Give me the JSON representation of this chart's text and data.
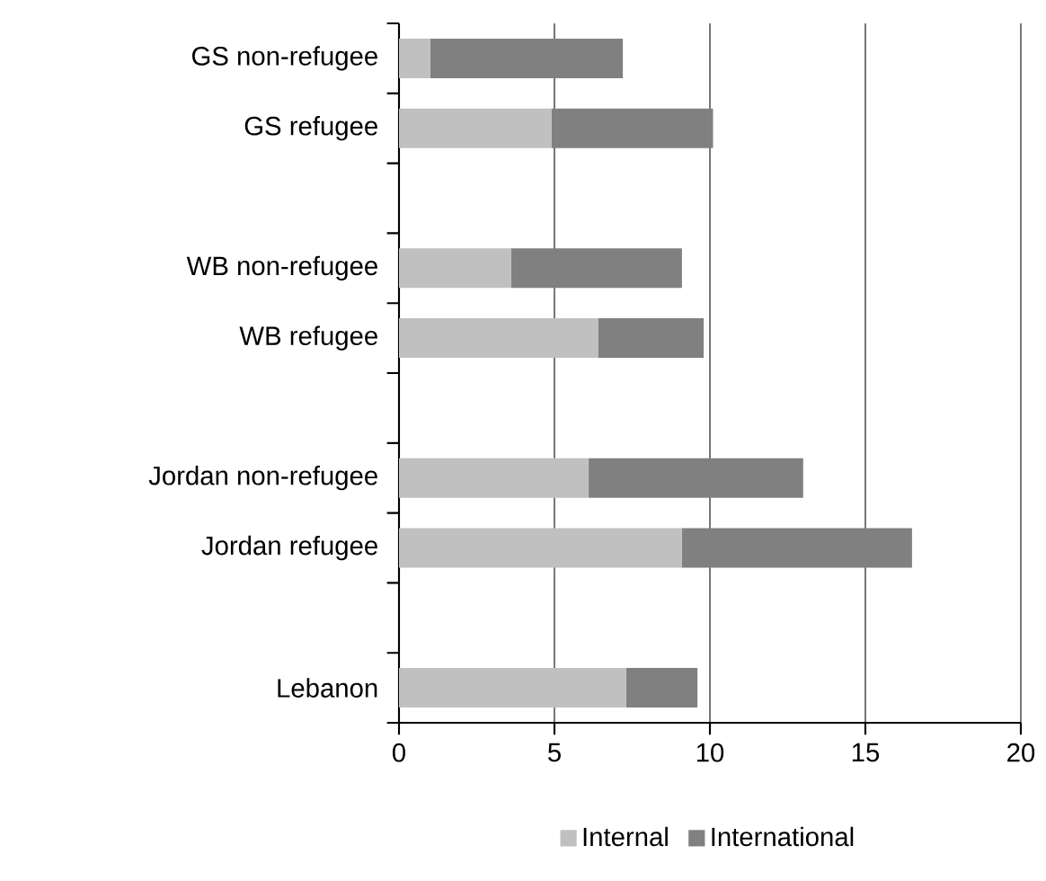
{
  "chart_data": {
    "type": "bar",
    "orientation": "horizontal",
    "stacked": true,
    "categories": [
      "GS non-refugee",
      "GS refugee",
      null,
      "WB non-refugee",
      "WB refugee",
      null,
      "Jordan non-refugee",
      "Jordan refugee",
      null,
      "Lebanon"
    ],
    "series": [
      {
        "name": "Internal",
        "color": "#c0c0c0",
        "values": [
          1.0,
          4.9,
          null,
          3.6,
          6.4,
          null,
          6.1,
          9.1,
          null,
          7.3
        ]
      },
      {
        "name": "International",
        "color": "#808080",
        "values": [
          6.2,
          5.2,
          null,
          5.5,
          3.4,
          null,
          6.9,
          7.4,
          null,
          2.3
        ]
      }
    ],
    "xlim": [
      0,
      20
    ],
    "xticks": [
      0,
      5,
      10,
      15,
      20
    ],
    "grid": "x",
    "legend": "bottom"
  }
}
